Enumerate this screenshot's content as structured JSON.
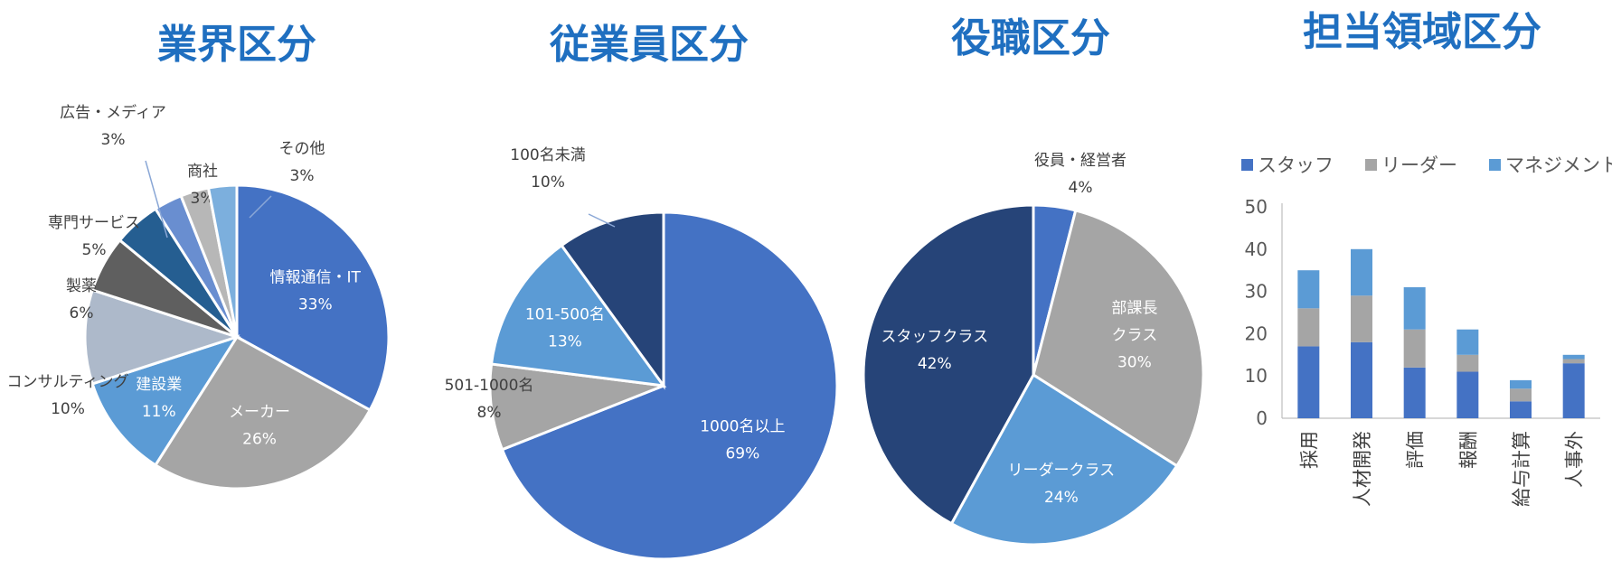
{
  "chart_data": [
    {
      "type": "pie",
      "title": "業界区分",
      "slices": [
        {
          "label": "情報通信・IT",
          "value": 33,
          "pct": "33%",
          "color": "#4472c4",
          "inside": true
        },
        {
          "label": "メーカー",
          "value": 26,
          "pct": "26%",
          "color": "#a5a5a5",
          "inside": true
        },
        {
          "label": "建設業",
          "value": 11,
          "pct": "11%",
          "color": "#5b9bd5",
          "inside": true
        },
        {
          "label": "コンサルティング",
          "value": 10,
          "pct": "10%",
          "color": "#adb9ca",
          "inside": false
        },
        {
          "label": "製薬",
          "value": 6,
          "pct": "6%",
          "color": "#5f5f5f",
          "inside": false
        },
        {
          "label": "専門サービス",
          "value": 5,
          "pct": "5%",
          "color": "#255e91",
          "inside": false
        },
        {
          "label": "広告・メディア",
          "value": 3,
          "pct": "3%",
          "color": "#698ed0",
          "inside": false
        },
        {
          "label": "商社",
          "value": 3,
          "pct": "3%",
          "color": "#b7b7b7",
          "inside": false
        },
        {
          "label": "その他",
          "value": 3,
          "pct": "3%",
          "color": "#7cafdd",
          "inside": false
        }
      ]
    },
    {
      "type": "pie",
      "title": "従業員区分",
      "slices": [
        {
          "label": "1000名以上",
          "value": 69,
          "pct": "69%",
          "color": "#4472c4",
          "inside": true
        },
        {
          "label": "501-1000名",
          "value": 8,
          "pct": "8%",
          "color": "#a5a5a5",
          "inside": false
        },
        {
          "label": "101-500名",
          "value": 13,
          "pct": "13%",
          "color": "#5b9bd5",
          "inside": true
        },
        {
          "label": "100名未満",
          "value": 10,
          "pct": "10%",
          "color": "#264478",
          "inside": false
        }
      ]
    },
    {
      "type": "pie",
      "title": "役職区分",
      "slices": [
        {
          "label": "役員・経営者",
          "value": 4,
          "pct": "4%",
          "color": "#4472c4",
          "inside": false
        },
        {
          "label": "部課長\nクラス",
          "value": 30,
          "pct": "30%",
          "color": "#a5a5a5",
          "inside": true
        },
        {
          "label": "リーダークラス",
          "value": 24,
          "pct": "24%",
          "color": "#5b9bd5",
          "inside": true
        },
        {
          "label": "スタッフクラス",
          "value": 42,
          "pct": "42%",
          "color": "#264478",
          "inside": true
        }
      ]
    },
    {
      "type": "bar",
      "stacked": true,
      "title": "担当領域区分",
      "categories": [
        "採用",
        "人材開発",
        "評価",
        "報酬",
        "給与計算",
        "人事外"
      ],
      "series": [
        {
          "name": "スタッフ",
          "color": "#4472c4",
          "values": [
            17,
            18,
            12,
            11,
            4,
            13
          ]
        },
        {
          "name": "リーダー",
          "color": "#a5a5a5",
          "values": [
            9,
            11,
            9,
            4,
            3,
            1
          ]
        },
        {
          "name": "マネジメント",
          "color": "#5b9bd5",
          "values": [
            9,
            11,
            10,
            6,
            2,
            1
          ]
        }
      ],
      "ylim": [
        0,
        50
      ],
      "yticks": [
        0,
        10,
        20,
        30,
        40,
        50
      ],
      "legend": "top",
      "grid": false
    }
  ]
}
